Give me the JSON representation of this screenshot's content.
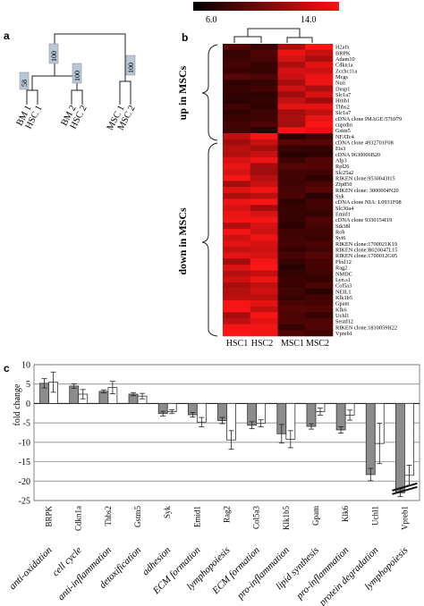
{
  "panels": {
    "a": {
      "letter": "a",
      "leaves": [
        "BM 1",
        "HSC 1",
        "BM 2",
        "HSC 2",
        "MSC 1",
        "MSC 2"
      ],
      "bootstrap": [
        "58",
        "100",
        "100",
        "100"
      ]
    },
    "b": {
      "letter": "b",
      "scale_min": "6.0",
      "scale_max": "14.0",
      "columns": [
        "HSC1",
        "HSC2",
        "MSC1",
        "MSC2"
      ],
      "group_up": "up in MSCs",
      "group_down": "down in MSCs",
      "genes_up": [
        "H2afx",
        "BRPK",
        "Adam10",
        "Cdkn1a",
        "Zcchc11a",
        "Mcgs",
        "Nun",
        "Dusp1",
        "Slc1a7",
        "Hrnb1",
        "Thbs2",
        "Slc1a7",
        "cDNA clone IMAGE:576979",
        "cupidin",
        "Gstm5"
      ],
      "genes_down": [
        "NFATc4",
        "cDNA clone 4932701F08",
        "Ets3",
        "cDNA 9630006B20",
        "Alp3",
        "Rpl26",
        "Slc25a2",
        "RIKEN clone:9530043I15",
        "Zfp850",
        "RIKEN clone: 3000004N20",
        "Syk",
        "cDNA clone NIA: L0931F08",
        "Slc30a4",
        "Emid1",
        "cDNA clone 9330154I19",
        "Stk38l",
        "Roh",
        "Syt6",
        "RIKEN clone:1700021K19",
        "RIKEN clone:B020047L15",
        "RIKEN clone:1700012G05",
        "Fbxl12",
        "Rag2",
        "NMDC",
        "Lyn.s1",
        "Col5a3",
        "NEIL1",
        "Klk1b5",
        "Gpam",
        "Klk6",
        "Uchl1",
        "Sestd12",
        "RIKEN clone:1810059H22",
        "Vpreb1"
      ]
    },
    "c": {
      "letter": "c",
      "ylabel": "fold change"
    }
  },
  "chart_data": {
    "type": "bar",
    "ylabel": "fold change",
    "ylim": [
      -25,
      10
    ],
    "yticks": [
      10,
      5,
      0,
      -5,
      -10,
      -15,
      -20,
      -25
    ],
    "categories": [
      "BRPK",
      "Cdkn1a",
      "Thbs2",
      "Gstm5",
      "Syk",
      "Emid1",
      "Rag2",
      "Col5a3",
      "Klk1b5",
      "Gpam",
      "Klk6",
      "Uchl1",
      "Vpreb1"
    ],
    "functions": [
      "anti-oxidation",
      "cell cycle",
      "anti-inflammation",
      "detoxification",
      "adhesion",
      "ECM formation",
      "lymphopoiesis",
      "ECM formation",
      "pro-inflammation",
      "lipid synthesis",
      "pro-inflammation",
      "protein degradation",
      "lymphopoiesis"
    ],
    "series": [
      {
        "color": "#8c8c8c",
        "values": [
          5.2,
          4.5,
          3.1,
          2.4,
          -2.6,
          -2.9,
          -4.4,
          -5.6,
          -7.8,
          -5.9,
          -6.8,
          -18.3,
          -23
        ]
      },
      {
        "color": "#ffffff",
        "values": [
          5.5,
          2.4,
          4.1,
          1.9,
          -2.1,
          -4.8,
          -9.4,
          -5.1,
          -9.2,
          -2.1,
          -3.0,
          -10.3,
          -18.5
        ]
      }
    ],
    "errors": [
      [
        1.2,
        0.6,
        0.4,
        0.4,
        0.6,
        0.6,
        0.8,
        0.9,
        2.4,
        0.7,
        0.8,
        1.6,
        1.0
      ],
      [
        2.6,
        1.2,
        1.6,
        0.7,
        0.5,
        1.2,
        2.4,
        0.9,
        2.2,
        0.9,
        1.3,
        5.2,
        2.6
      ]
    ],
    "axis_break": "Vpreb1"
  }
}
